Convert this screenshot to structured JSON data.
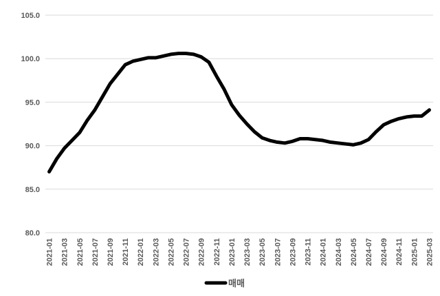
{
  "chart_data": {
    "type": "line",
    "categories": [
      "2021-01",
      null,
      "2021-03",
      null,
      "2021-05",
      null,
      "2021-07",
      null,
      "2021-09",
      null,
      "2021-11",
      null,
      "2022-01",
      null,
      "2022-03",
      null,
      "2022-05",
      null,
      "2022-07",
      null,
      "2022-09",
      null,
      "2022-11",
      null,
      "2023-01",
      null,
      "2023-03",
      null,
      "2023-05",
      null,
      "2023-07",
      null,
      "2023-09",
      null,
      "2023-11",
      null,
      "2024-01",
      null,
      "2024-03",
      null,
      "2024-05",
      null,
      "2024-07",
      null,
      "2024-09",
      null,
      "2024-11",
      null,
      "2025-01",
      null,
      "2025-03"
    ],
    "series": [
      {
        "name": "매매",
        "color": "#000000",
        "values": [
          87.0,
          88.5,
          89.7,
          90.6,
          91.5,
          92.9,
          94.1,
          95.6,
          97.1,
          98.2,
          99.3,
          99.7,
          99.9,
          100.1,
          100.1,
          100.3,
          100.5,
          100.6,
          100.6,
          100.5,
          100.2,
          99.6,
          98.0,
          96.5,
          94.7,
          93.5,
          92.5,
          91.6,
          90.9,
          90.6,
          90.4,
          90.3,
          90.5,
          90.8,
          90.8,
          90.7,
          90.6,
          90.4,
          90.3,
          90.2,
          90.1,
          90.3,
          90.7,
          91.6,
          92.4,
          92.8,
          93.1,
          93.3,
          93.4,
          93.4,
          94.1
        ]
      }
    ],
    "ylim": [
      80,
      105
    ],
    "yticks": [
      {
        "value": 80,
        "label": "80.0"
      },
      {
        "value": 85,
        "label": "85.0"
      },
      {
        "value": 90,
        "label": "90.0"
      },
      {
        "value": 95,
        "label": "95.0"
      },
      {
        "value": 100,
        "label": "100.0"
      },
      {
        "value": 105,
        "label": "105.0"
      }
    ],
    "grid": true,
    "legend": "bottom"
  }
}
